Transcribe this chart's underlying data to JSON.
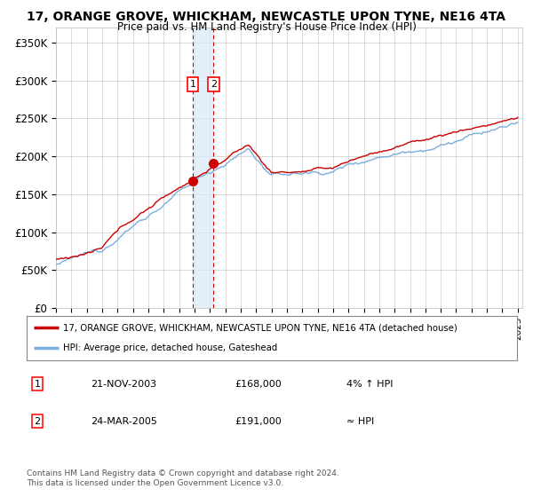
{
  "title": "17, ORANGE GROVE, WHICKHAM, NEWCASTLE UPON TYNE, NE16 4TA",
  "subtitle": "Price paid vs. HM Land Registry's House Price Index (HPI)",
  "ylim": [
    0,
    370000
  ],
  "yticks": [
    0,
    50000,
    100000,
    150000,
    200000,
    250000,
    300000,
    350000
  ],
  "ytick_labels": [
    "£0",
    "£50K",
    "£100K",
    "£150K",
    "£200K",
    "£250K",
    "£300K",
    "£350K"
  ],
  "x_start_year": 1995,
  "x_end_year": 2025,
  "sale1_date": 2003.89,
  "sale1_price": 168000,
  "sale2_date": 2005.23,
  "sale2_price": 191000,
  "legend_line1": "17, ORANGE GROVE, WHICKHAM, NEWCASTLE UPON TYNE, NE16 4TA (detached house)",
  "legend_line2": "HPI: Average price, detached house, Gateshead",
  "footer": "Contains HM Land Registry data © Crown copyright and database right 2024.\nThis data is licensed under the Open Government Licence v3.0.",
  "hpi_line_color": "#7aaedc",
  "price_line_color": "#cc0000",
  "sale_dot_color": "#cc0000",
  "bg_color": "#ffffff",
  "grid_color": "#cccccc",
  "highlight_color": "#d8eaf7",
  "highlight_alpha": 0.7
}
